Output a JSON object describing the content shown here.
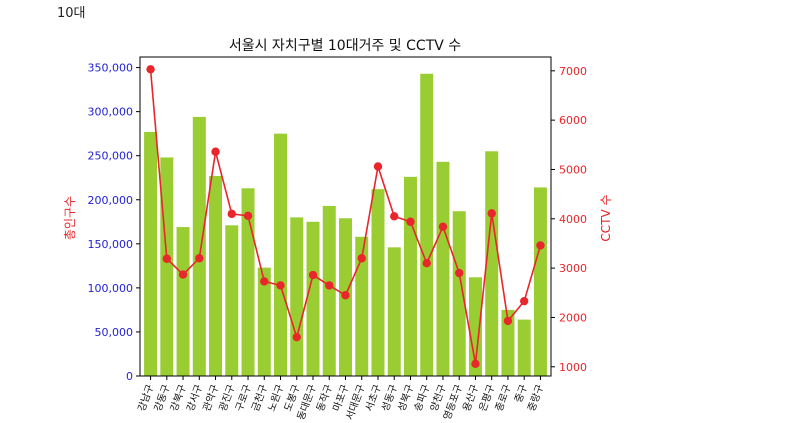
{
  "header_label": "10대",
  "chart_data": {
    "type": "bar",
    "title": "서울시 자치구별 10대거주 및 CCTV 수",
    "xlabel": "",
    "ylabel_left": "총인구수",
    "ylabel_right": "CCTV 수",
    "categories": [
      "강남구",
      "강동구",
      "강북구",
      "강서구",
      "관악구",
      "광진구",
      "구로구",
      "금천구",
      "노원구",
      "도봉구",
      "동대문구",
      "동작구",
      "마포구",
      "서대문구",
      "서초구",
      "성동구",
      "성북구",
      "송파구",
      "양천구",
      "영등포구",
      "용산구",
      "은평구",
      "종로구",
      "중구",
      "중랑구"
    ],
    "series": [
      {
        "axis": "left",
        "type": "bar",
        "color": "#9acd32",
        "values": [
          277000,
          248000,
          169000,
          294000,
          227000,
          171000,
          213000,
          123000,
          275000,
          180000,
          175000,
          193000,
          179000,
          158000,
          212000,
          146000,
          226000,
          343000,
          243000,
          187000,
          112000,
          255000,
          75000,
          64000,
          214000
        ]
      },
      {
        "axis": "right",
        "type": "line",
        "color": "#e8262b",
        "values": [
          7030,
          3190,
          2870,
          3200,
          5360,
          4100,
          4060,
          2730,
          2650,
          1600,
          2860,
          2650,
          2450,
          3200,
          5060,
          4050,
          3940,
          3100,
          3840,
          2900,
          1060,
          4110,
          1930,
          2330,
          3460
        ]
      }
    ],
    "ylim_left": [
      0,
      362000
    ],
    "yticks_left": [
      0,
      50000,
      100000,
      150000,
      200000,
      250000,
      300000,
      350000
    ],
    "yticklabels_left": [
      "0",
      "50,000",
      "100,000",
      "150,000",
      "200,000",
      "250,000",
      "300,000",
      "350,000"
    ],
    "ylim_right": [
      813,
      7280
    ],
    "yticks_right": [
      1000,
      2000,
      3000,
      4000,
      5000,
      6000,
      7000
    ],
    "yticklabels_right": [
      "1000",
      "2000",
      "3000",
      "4000",
      "5000",
      "6000",
      "7000"
    ],
    "grid": false,
    "legend": "none"
  }
}
